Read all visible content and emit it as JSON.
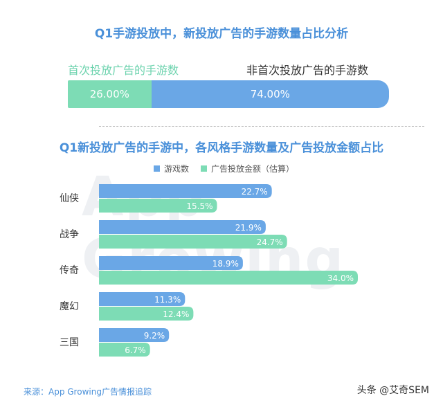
{
  "title1": "Q1手游投放中，新投放广告的手游数量占比分析",
  "labels": {
    "new": "首次投放广告的手游数",
    "old": "非首次投放广告的手游数"
  },
  "stack": {
    "new_label": "26.00%",
    "old_label": "74.00%",
    "new_value": 26.0,
    "old_value": 74.0
  },
  "title2": "Q1新投放广告的手游中，各风格手游数量及广告投放金额占比",
  "legend": {
    "s1": "游戏数",
    "s2": "广告投放金额（估算）"
  },
  "watermark": "App Growing",
  "source": "来源：App Growing广告情报追踪",
  "brand": "头条 @艾奇SEM",
  "colors": {
    "blue": "#6aa7e6",
    "green": "#7ddcb5",
    "title": "#4a90d9"
  },
  "chart_data": [
    {
      "type": "bar",
      "orientation": "stacked-horizontal",
      "categories": [
        "首次投放广告的手游数",
        "非首次投放广告的手游数"
      ],
      "values": [
        26.0,
        74.0
      ],
      "title": "Q1手游投放中，新投放广告的手游数量占比分析"
    },
    {
      "type": "bar",
      "orientation": "horizontal",
      "title": "Q1新投放广告的手游中，各风格手游数量及广告投放金额占比",
      "categories": [
        "仙侠",
        "战争",
        "传奇",
        "魔幻",
        "三国"
      ],
      "series": [
        {
          "name": "游戏数",
          "values": [
            22.7,
            21.9,
            18.9,
            11.3,
            9.2
          ],
          "labels": [
            "22.7%",
            "21.9%",
            "18.9%",
            "11.3%",
            "9.2%"
          ]
        },
        {
          "name": "广告投放金额（估算）",
          "values": [
            15.5,
            24.7,
            34.0,
            12.4,
            6.7
          ],
          "labels": [
            "15.5%",
            "24.7%",
            "34.0%",
            "12.4%",
            "6.7%"
          ]
        }
      ],
      "legend_position": "top"
    }
  ]
}
